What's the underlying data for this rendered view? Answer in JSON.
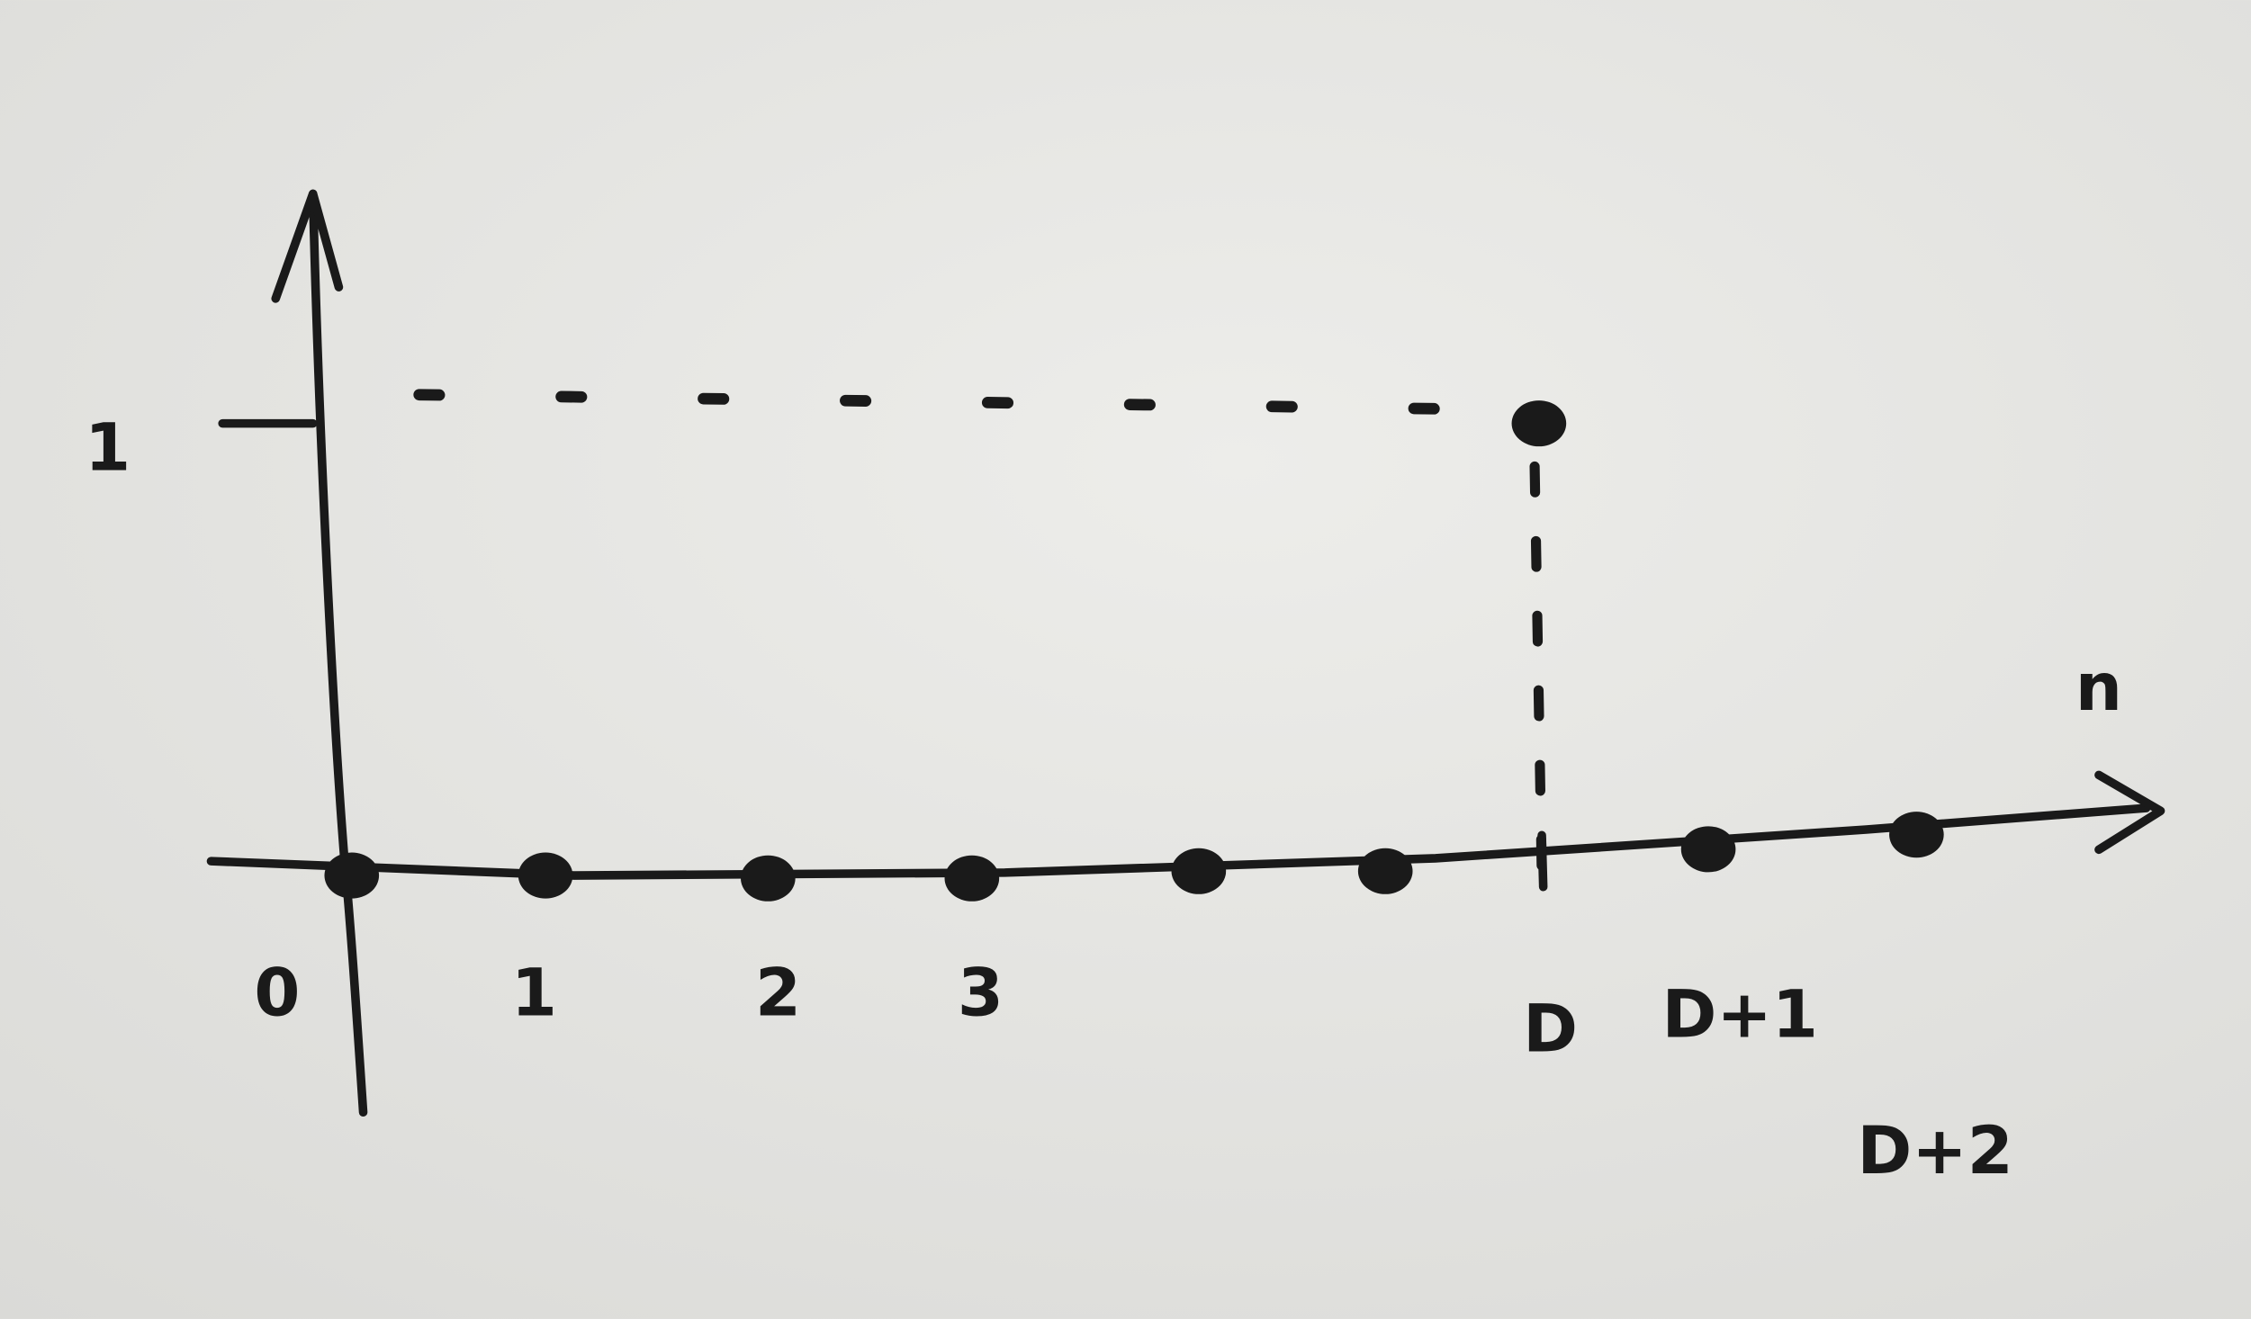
{
  "chart_data": {
    "type": "stem",
    "categories": [
      "0",
      "1",
      "2",
      "3",
      null,
      null,
      "D",
      "D+1",
      "D+2"
    ],
    "values": [
      0,
      0,
      0,
      0,
      0,
      0,
      1,
      0,
      0
    ],
    "x_label": "n",
    "ylim": [
      -0.5,
      1.5
    ],
    "yticks": [
      1
    ],
    "color": "#1a1a1a"
  }
}
